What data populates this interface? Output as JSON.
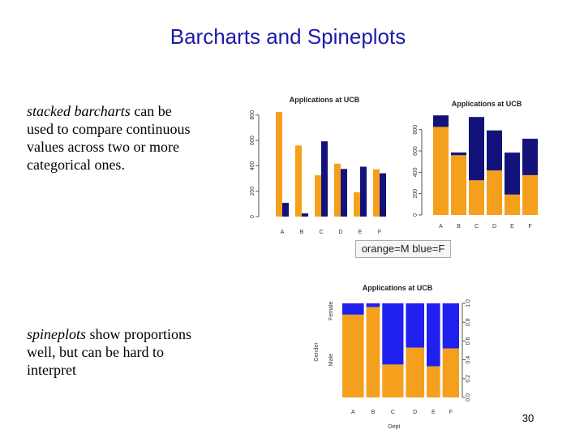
{
  "slide": {
    "title": "Barcharts and Spineplots",
    "para1": {
      "em": "stacked barcharts",
      "rest": " can be used to compare continuous values across two or more categorical ones."
    },
    "para2": {
      "em": "spineplots",
      "rest": " show proportions well, but can be hard to interpret"
    },
    "caption": "orange=M blue=F",
    "page_number": "30"
  },
  "colors": {
    "male": "#f5a01d",
    "female": "#12127a",
    "female_spine": "#2020ee",
    "title": "#1c1ca8"
  },
  "chart_data": [
    {
      "type": "bar",
      "subtype": "grouped",
      "title": "Applications at UCB",
      "categories": [
        "A",
        "B",
        "C",
        "D",
        "E",
        "F"
      ],
      "series": [
        {
          "name": "M",
          "values": [
            825,
            560,
            325,
            417,
            191,
            373
          ]
        },
        {
          "name": "F",
          "values": [
            108,
            25,
            593,
            375,
            393,
            341
          ]
        }
      ],
      "ylim": [
        0,
        850
      ],
      "yticks": [
        0,
        200,
        400,
        600,
        800
      ]
    },
    {
      "type": "bar",
      "subtype": "stacked",
      "title": "Applications at UCB",
      "categories": [
        "A",
        "B",
        "C",
        "D",
        "E",
        "F"
      ],
      "series": [
        {
          "name": "M",
          "values": [
            825,
            560,
            325,
            417,
            191,
            373
          ]
        },
        {
          "name": "F",
          "values": [
            108,
            25,
            593,
            375,
            393,
            341
          ]
        }
      ],
      "ylim": [
        0,
        950
      ],
      "yticks": [
        0,
        200,
        400,
        600,
        800
      ]
    },
    {
      "type": "bar",
      "subtype": "spineplot",
      "title": "Applications at UCB",
      "xlabel": "Dept",
      "ylabel": "Gender",
      "categories": [
        "A",
        "B",
        "C",
        "D",
        "E",
        "F"
      ],
      "totals": [
        933,
        585,
        918,
        792,
        584,
        714
      ],
      "male_fraction": [
        0.88,
        0.96,
        0.35,
        0.53,
        0.33,
        0.52
      ],
      "ylim": [
        0,
        1
      ],
      "right_ticks": [
        "0.0",
        "0.2",
        "0.4",
        "0.6",
        "0.8",
        "1.0"
      ],
      "left_labels": [
        "Male",
        "Female"
      ]
    }
  ]
}
